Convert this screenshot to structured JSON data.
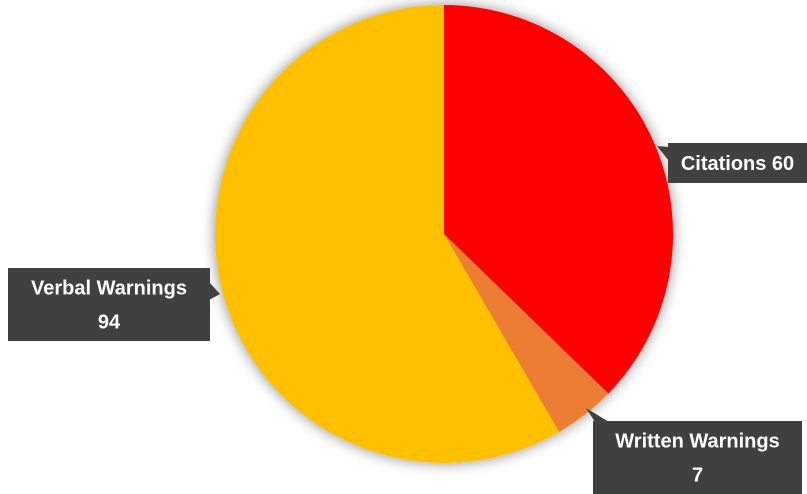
{
  "chart_data": {
    "type": "pie",
    "start_angle_deg": 0,
    "direction": "clockwise",
    "slices": [
      {
        "label": "Citations",
        "value": 60,
        "label_lines": [
          "Citations 60"
        ],
        "color": "#FF0000"
      },
      {
        "label": "Written Warnings",
        "value": 7,
        "label_lines": [
          "Written Warnings",
          "7"
        ],
        "color": "#ED7D31"
      },
      {
        "label": "Verbal Warnings",
        "value": 94,
        "label_lines": [
          "Verbal Warnings",
          "94"
        ],
        "color": "#FFC000"
      }
    ],
    "data_labels": "callouts",
    "callout_color": "#404040",
    "legend": "none",
    "title": ""
  }
}
